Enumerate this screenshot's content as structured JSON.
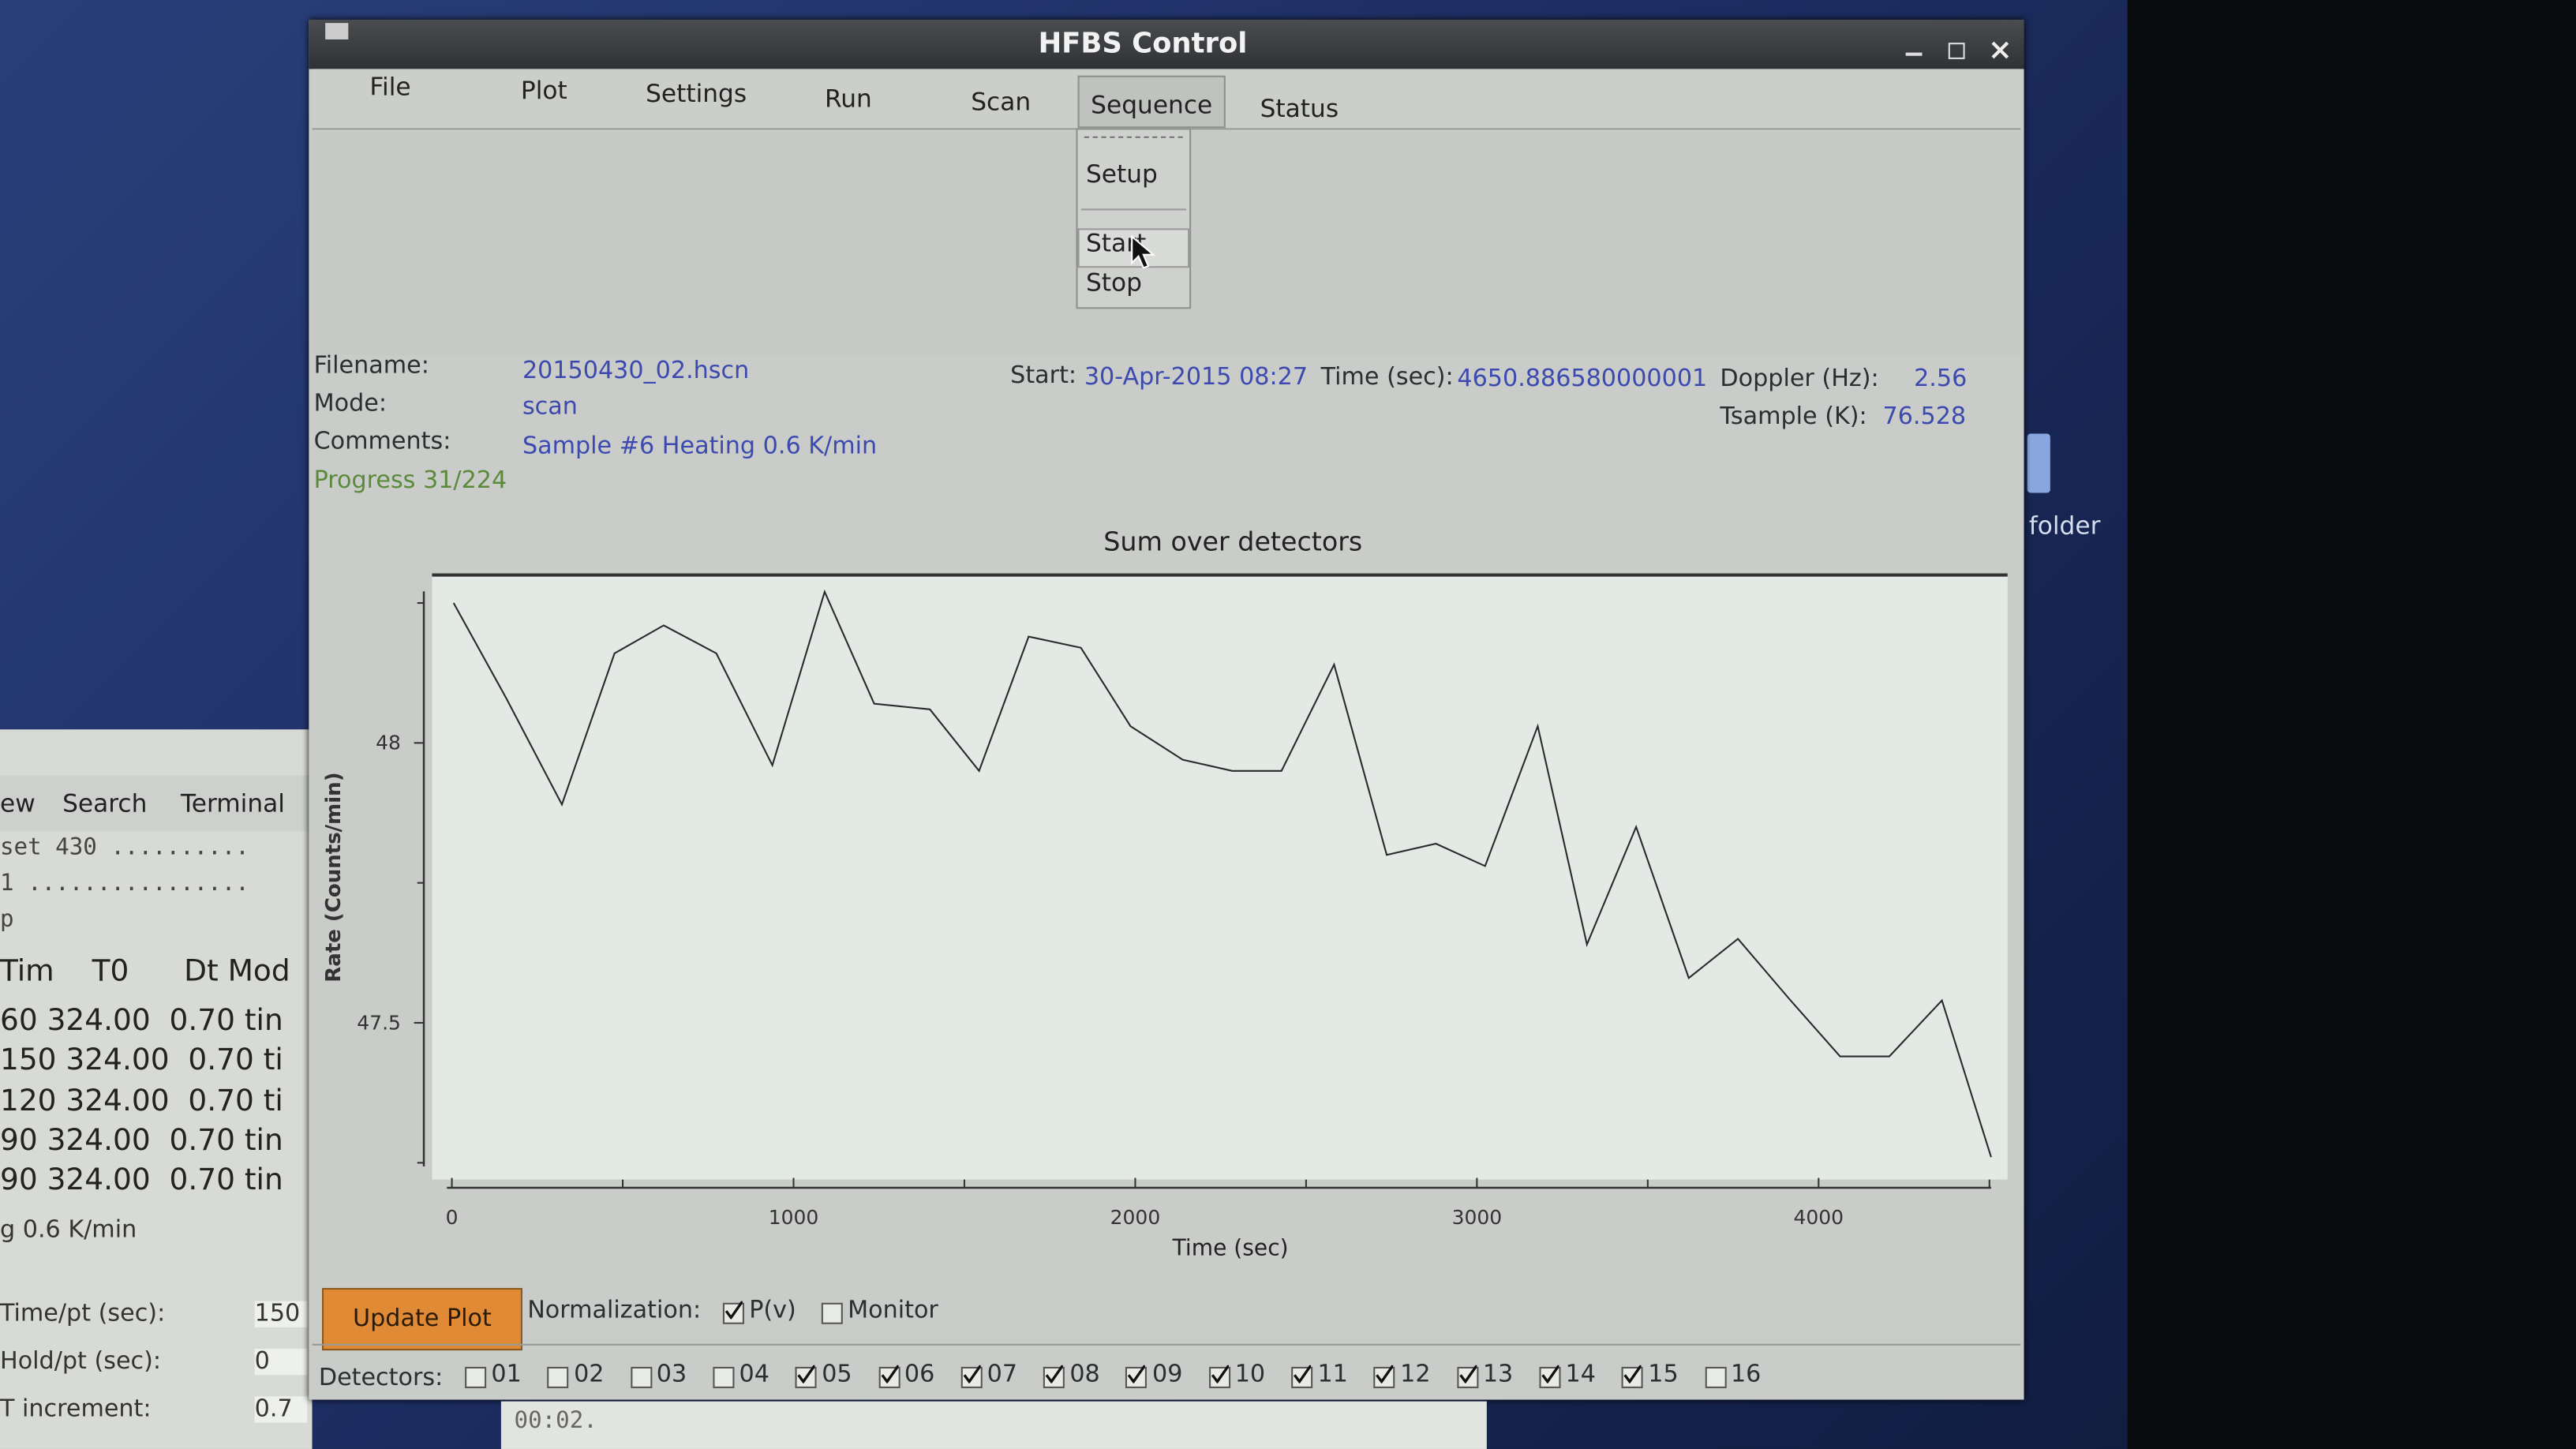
{
  "window": {
    "title": "HFBS Control"
  },
  "menu": [
    "File",
    "Plot",
    "Settings",
    "Run",
    "Scan",
    "Sequence",
    "Status"
  ],
  "sequence_menu": [
    "Setup",
    "Start",
    "Stop"
  ],
  "info": {
    "filename_label": "Filename:",
    "filename": "20150430_02.hscn",
    "mode_label": "Mode:",
    "mode": "scan",
    "comments_label": "Comments:",
    "comments": "Sample #6 Heating 0.6 K/min",
    "progress": "Progress 31/224",
    "start_label": "Start:",
    "start": "30-Apr-2015 08:27",
    "time_label": "Time (sec):",
    "time": "4650.886580000001",
    "doppler_label": "Doppler (Hz):",
    "doppler": "2.56",
    "tsample_label": "Tsample  (K):",
    "tsample": "76.528"
  },
  "chart_data": {
    "type": "line",
    "title": "Sum over detectors",
    "x_label": "Time (sec)",
    "y_label": "Rate (Counts/min)",
    "x": [
      5,
      159,
      322,
      476,
      620,
      774,
      938,
      1091,
      1236,
      1399,
      1543,
      1688,
      1841,
      1986,
      2139,
      2284,
      2428,
      2582,
      2736,
      2880,
      3024,
      3178,
      3322,
      3466,
      3620,
      3764,
      3918,
      4063,
      4207,
      4361,
      4505
    ],
    "series": [
      {
        "name": "Sum over detectors",
        "color": "#2a2a2a",
        "values": [
          48.25,
          48.08,
          47.89,
          48.16,
          48.21,
          48.16,
          47.96,
          48.27,
          48.07,
          48.06,
          47.95,
          48.19,
          48.17,
          48.03,
          47.97,
          47.95,
          47.95,
          48.14,
          47.8,
          47.82,
          47.78,
          48.03,
          47.64,
          47.85,
          47.58,
          47.65,
          47.54,
          47.44,
          47.44,
          47.54,
          47.26
        ]
      }
    ],
    "xlim": [
      -58,
      4553
    ],
    "ylim": [
      47.22,
      48.3
    ],
    "xticks": [
      0,
      1000,
      2000,
      3000,
      4000
    ],
    "x_minor_ticks": [
      500,
      1500,
      2500,
      3500,
      4500
    ],
    "yticks": [
      47.5,
      48
    ],
    "y_minor_ticks": [
      47.25,
      47.75,
      48.25
    ],
    "grid": false,
    "background": "#e3eae5"
  },
  "controls": {
    "update_button": "Update Plot",
    "normalization_label": "Normalization:",
    "normalization": [
      {
        "label": "P(v)",
        "checked": true
      },
      {
        "label": "Monitor",
        "checked": false
      }
    ],
    "detectors_label": "Detectors:",
    "detectors": [
      {
        "label": "01",
        "checked": false
      },
      {
        "label": "02",
        "checked": false
      },
      {
        "label": "03",
        "checked": false
      },
      {
        "label": "04",
        "checked": false
      },
      {
        "label": "05",
        "checked": true
      },
      {
        "label": "06",
        "checked": true
      },
      {
        "label": "07",
        "checked": true
      },
      {
        "label": "08",
        "checked": true
      },
      {
        "label": "09",
        "checked": true
      },
      {
        "label": "10",
        "checked": true
      },
      {
        "label": "11",
        "checked": true
      },
      {
        "label": "12",
        "checked": true
      },
      {
        "label": "13",
        "checked": true
      },
      {
        "label": "14",
        "checked": true
      },
      {
        "label": "15",
        "checked": true
      },
      {
        "label": "16",
        "checked": false
      }
    ]
  },
  "terminal": {
    "menu": [
      "ew",
      "Search",
      "Terminal"
    ],
    "lines": [
      "set 430 ..........",
      "1 ................",
      "p"
    ],
    "header": [
      "Tim",
      "T0",
      "Dt Mod"
    ],
    "rows": [
      "60 324.00  0.70 tin",
      "150 324.00  0.70 ti",
      "120 324.00  0.70 ti",
      "90 324.00  0.70 tin",
      "90 324.00  0.70 tin"
    ],
    "comment": "g 0.6 K/min",
    "fields": [
      {
        "label": "Time/pt (sec):",
        "value": "150"
      },
      {
        "label": "Hold/pt (sec):",
        "value": "0"
      },
      {
        "label": "T increment:",
        "value": "0.7"
      }
    ]
  },
  "desktop": {
    "folder_label": "folder"
  },
  "status_text": "00:02."
}
